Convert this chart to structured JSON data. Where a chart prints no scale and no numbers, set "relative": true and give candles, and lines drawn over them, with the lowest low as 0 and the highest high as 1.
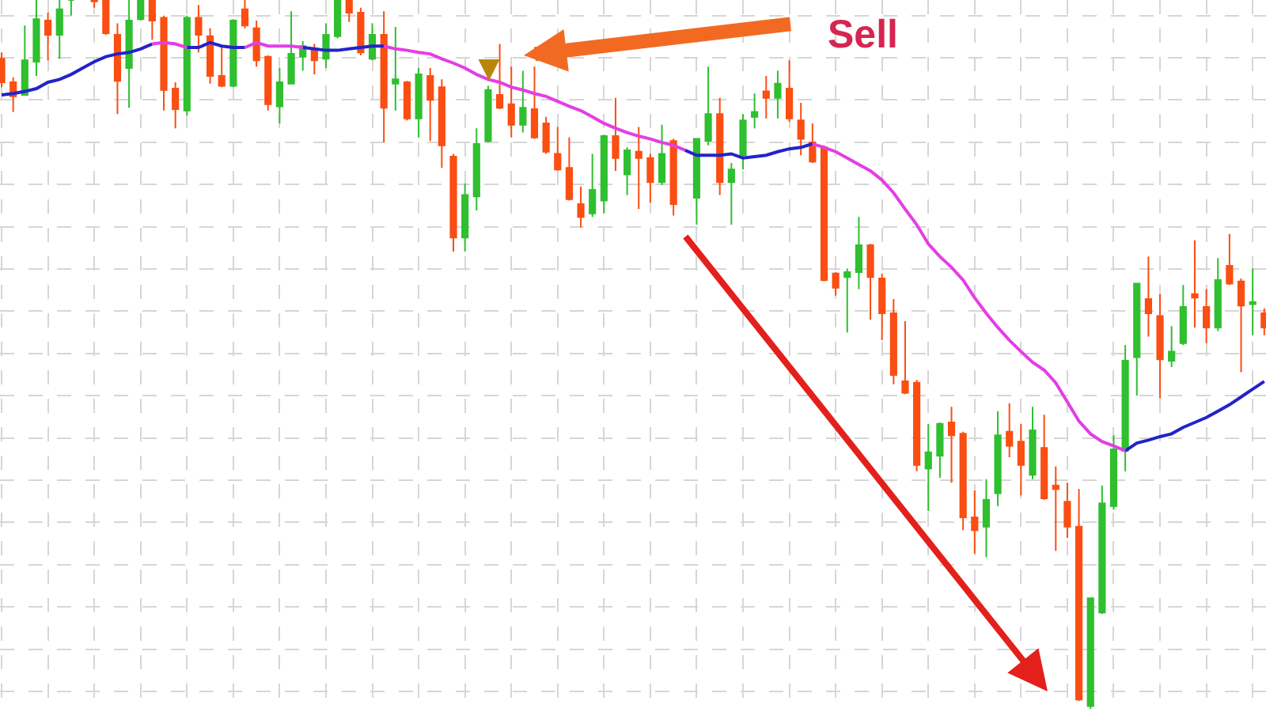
{
  "chart_data": {
    "type": "candlestick",
    "relative": true,
    "grid": true,
    "categories": [
      null,
      null,
      null,
      null,
      null,
      null,
      null,
      null,
      null,
      null,
      null,
      null,
      null,
      null,
      null,
      null,
      null,
      null,
      null,
      null,
      null,
      null,
      null,
      null,
      null,
      null,
      null,
      null,
      null,
      null,
      null,
      null,
      null,
      null,
      null,
      null,
      null,
      null,
      null,
      null,
      null,
      null,
      null,
      null,
      null,
      null,
      null,
      null,
      null,
      null,
      null,
      null,
      null,
      null,
      null,
      null,
      null,
      null,
      null,
      null,
      null,
      null,
      null,
      null,
      null,
      null,
      null,
      null,
      null,
      null,
      null,
      null,
      null,
      null,
      null,
      null,
      null,
      null,
      null,
      null,
      null,
      null,
      null,
      null,
      null,
      null,
      null,
      null,
      null,
      null,
      null,
      null,
      null,
      null,
      null,
      null,
      null,
      null,
      null,
      null,
      null,
      null,
      null,
      null,
      null,
      null,
      null,
      null,
      null,
      null
    ],
    "ohlc": [
      [
        0.917,
        0.926,
        0.877,
        0.884
      ],
      [
        0.884,
        0.891,
        0.842,
        0.864
      ],
      [
        0.866,
        0.964,
        0.866,
        0.915
      ],
      [
        0.913,
        1.0,
        0.893,
        0.973
      ],
      [
        0.971,
        0.982,
        0.915,
        0.951
      ],
      [
        0.951,
        1.0,
        0.917,
        0.987
      ],
      [
        1.0,
        1.0,
        0.978,
        1.0
      ],
      null,
      [
        1.0,
        1.0,
        0.989,
        0.998
      ],
      [
        1.0,
        1.0,
        0.951,
        0.953
      ],
      [
        0.951,
        0.967,
        0.839,
        0.886
      ],
      [
        0.904,
        1.0,
        0.848,
        0.971
      ],
      [
        0.973,
        1.0,
        0.971,
        1.0
      ],
      [
        1.0,
        1.0,
        0.944,
        0.971
      ],
      [
        0.975,
        0.978,
        0.844,
        0.873
      ],
      [
        0.875,
        0.884,
        0.819,
        0.846
      ],
      [
        0.844,
        0.978,
        0.837,
        0.975
      ],
      [
        0.975,
        0.993,
        0.926,
        0.951
      ],
      [
        0.949,
        0.96,
        0.882,
        0.893
      ],
      [
        0.893,
        0.933,
        0.877,
        0.879
      ],
      [
        0.879,
        0.973,
        0.877,
        0.971
      ],
      [
        0.987,
        1.0,
        0.96,
        0.964
      ],
      [
        0.96,
        0.971,
        0.906,
        0.915
      ],
      [
        0.92,
        0.922,
        0.844,
        0.853
      ],
      [
        0.85,
        0.904,
        0.826,
        0.884
      ],
      [
        0.882,
        0.984,
        0.882,
        0.924
      ],
      [
        0.92,
        0.942,
        0.9,
        0.935
      ],
      [
        0.931,
        0.938,
        0.895,
        0.915
      ],
      [
        0.917,
        0.967,
        0.904,
        0.951
      ],
      [
        0.949,
        1.0,
        0.946,
        1.0
      ],
      [
        1.0,
        1.0,
        0.969,
        0.982
      ],
      [
        0.982,
        0.989,
        0.922,
        0.926
      ],
      [
        0.917,
        0.967,
        0.915,
        0.951
      ],
      [
        0.951,
        0.984,
        0.799,
        0.848
      ],
      [
        0.882,
        0.962,
        0.844,
        0.888
      ],
      [
        0.884,
        0.886,
        0.83,
        0.833
      ],
      [
        0.833,
        0.904,
        0.806,
        0.895
      ],
      [
        0.893,
        0.904,
        0.801,
        0.859
      ],
      [
        0.877,
        0.888,
        0.763,
        0.795
      ],
      [
        0.779,
        0.783,
        0.645,
        0.665
      ],
      [
        0.665,
        0.741,
        0.645,
        0.725
      ],
      [
        0.723,
        0.819,
        0.703,
        0.797
      ],
      [
        0.801,
        0.879,
        0.799,
        0.873
      ],
      [
        0.866,
        0.938,
        0.846,
        0.848
      ],
      [
        0.853,
        0.906,
        0.806,
        0.824
      ],
      [
        0.824,
        0.9,
        0.813,
        0.848
      ],
      [
        0.846,
        0.906,
        0.804,
        0.806
      ],
      [
        0.826,
        0.835,
        0.783,
        0.786
      ],
      [
        0.783,
        0.821,
        0.759,
        0.761
      ],
      [
        0.763,
        0.806,
        0.717,
        0.719
      ],
      [
        0.712,
        0.737,
        0.679,
        0.694
      ],
      [
        0.699,
        0.783,
        0.694,
        0.732
      ],
      [
        0.717,
        0.81,
        0.699,
        0.808
      ],
      [
        0.808,
        0.862,
        0.759,
        0.777
      ],
      [
        0.754,
        0.792,
        0.725,
        0.788
      ],
      [
        0.786,
        0.821,
        0.705,
        0.777
      ],
      [
        0.777,
        0.783,
        0.714,
        0.743
      ],
      [
        0.743,
        0.824,
        0.739,
        0.783
      ],
      [
        0.801,
        0.804,
        0.696,
        0.712
      ],
      null,
      [
        0.721,
        0.804,
        0.683,
        0.804
      ],
      [
        0.801,
        0.906,
        0.795,
        0.839
      ],
      [
        0.839,
        0.862,
        0.725,
        0.743
      ],
      [
        0.743,
        0.77,
        0.683,
        0.761
      ],
      [
        0.781,
        0.839,
        0.761,
        0.83
      ],
      [
        0.835,
        0.868,
        0.819,
        0.842
      ],
      [
        0.871,
        0.893,
        0.833,
        0.862
      ],
      [
        0.862,
        0.9,
        0.833,
        0.882
      ],
      [
        0.875,
        0.915,
        0.828,
        0.833
      ],
      [
        0.83,
        0.855,
        0.781,
        0.804
      ],
      [
        0.799,
        0.826,
        0.77,
        0.772
      ],
      [
        0.792,
        0.795,
        0.603,
        0.605
      ],
      [
        0.614,
        0.616,
        0.583,
        0.594
      ],
      [
        0.609,
        0.621,
        0.531,
        0.616
      ],
      [
        0.616,
        0.694,
        0.592,
        0.654
      ],
      [
        0.654,
        0.656,
        0.549,
        0.609
      ],
      [
        0.607,
        0.614,
        0.52,
        0.558
      ],
      [
        0.558,
        0.578,
        0.458,
        0.471
      ],
      [
        0.462,
        0.547,
        0.444,
        0.446
      ],
      [
        0.46,
        0.464,
        0.335,
        0.344
      ],
      [
        0.339,
        0.402,
        0.279,
        0.362
      ],
      [
        0.357,
        0.404,
        0.326,
        0.402
      ],
      [
        0.404,
        0.426,
        0.319,
        0.386
      ],
      [
        0.388,
        0.391,
        0.252,
        0.27
      ],
      [
        0.27,
        0.308,
        0.219,
        0.252
      ],
      [
        0.257,
        0.324,
        0.214,
        0.295
      ],
      [
        0.304,
        0.42,
        0.286,
        0.386
      ],
      [
        0.391,
        0.431,
        0.355,
        0.371
      ],
      [
        0.377,
        0.402,
        0.301,
        0.344
      ],
      [
        0.33,
        0.426,
        0.324,
        0.393
      ],
      [
        0.368,
        0.415,
        0.295,
        0.297
      ],
      [
        0.315,
        0.342,
        0.223,
        0.31
      ],
      [
        0.292,
        0.319,
        0.241,
        0.257
      ],
      [
        0.257,
        0.31,
        0.011,
        0.013
      ],
      [
        0.004,
        0.156,
        0.0,
        0.156
      ],
      [
        0.136,
        0.315,
        0.134,
        0.29
      ],
      [
        0.286,
        0.386,
        0.281,
        0.366
      ],
      [
        0.364,
        0.513,
        0.335,
        0.491
      ],
      [
        0.496,
        0.6,
        0.442,
        0.6
      ],
      [
        0.578,
        0.638,
        0.525,
        0.558
      ],
      [
        0.554,
        0.585,
        0.438,
        0.493
      ],
      [
        0.491,
        0.54,
        0.482,
        0.504
      ],
      [
        0.516,
        0.598,
        0.513,
        0.567
      ],
      [
        0.585,
        0.661,
        0.538,
        0.58
      ],
      [
        0.567,
        0.592,
        0.516,
        0.538
      ],
      [
        0.538,
        0.636,
        0.533,
        0.605
      ],
      [
        0.625,
        0.67,
        0.598,
        0.6
      ],
      [
        0.603,
        0.607,
        0.475,
        0.569
      ],
      [
        0.571,
        0.621,
        0.527,
        0.574
      ],
      [
        0.558,
        0.565,
        0.527,
        0.538
      ]
    ],
    "colors": [
      "#fb4e12",
      "#fb4e12",
      "#2fbf2f",
      "#2fbf2f",
      "#fb4e12",
      "#2fbf2f",
      "#2fbf2f",
      null,
      "#fb4e12",
      "#fb4e12",
      "#fb4e12",
      "#2fbf2f",
      "#2fbf2f",
      "#fb4e12",
      "#fb4e12",
      "#fb4e12",
      "#2fbf2f",
      "#fb4e12",
      "#fb4e12",
      "#fb4e12",
      "#2fbf2f",
      "#fb4e12",
      "#fb4e12",
      "#fb4e12",
      "#2fbf2f",
      "#2fbf2f",
      "#2fbf2f",
      "#fb4e12",
      "#2fbf2f",
      "#2fbf2f",
      "#fb4e12",
      "#fb4e12",
      "#2fbf2f",
      "#fb4e12",
      "#2fbf2f",
      "#fb4e12",
      "#2fbf2f",
      "#fb4e12",
      "#fb4e12",
      "#fb4e12",
      "#2fbf2f",
      "#2fbf2f",
      "#2fbf2f",
      "#fb4e12",
      "#fb4e12",
      "#2fbf2f",
      "#fb4e12",
      "#fb4e12",
      "#fb4e12",
      "#fb4e12",
      "#fb4e12",
      "#2fbf2f",
      "#2fbf2f",
      "#fb4e12",
      "#2fbf2f",
      "#fb4e12",
      "#fb4e12",
      "#2fbf2f",
      "#fb4e12",
      null,
      "#2fbf2f",
      "#2fbf2f",
      "#fb4e12",
      "#2fbf2f",
      "#2fbf2f",
      "#2fbf2f",
      "#fb4e12",
      "#2fbf2f",
      "#fb4e12",
      "#fb4e12",
      "#fb4e12",
      "#fb4e12",
      "#fb4e12",
      "#2fbf2f",
      "#2fbf2f",
      "#fb4e12",
      "#fb4e12",
      "#fb4e12",
      "#fb4e12",
      "#fb4e12",
      "#2fbf2f",
      "#2fbf2f",
      "#fb4e12",
      "#fb4e12",
      "#fb4e12",
      "#2fbf2f",
      "#2fbf2f",
      "#fb4e12",
      "#fb4e12",
      "#2fbf2f",
      "#fb4e12",
      "#fb4e12",
      "#fb4e12",
      "#fb4e12",
      "#2fbf2f",
      "#2fbf2f",
      "#2fbf2f",
      "#2fbf2f",
      "#2fbf2f",
      "#fb4e12",
      "#fb4e12",
      "#2fbf2f",
      "#2fbf2f",
      "#fb4e12",
      "#fb4e12",
      "#2fbf2f",
      "#fb4e12",
      "#fb4e12",
      "#2fbf2f",
      "#fb4e12"
    ],
    "series": [
      {
        "type": "line",
        "color": "#2323c8",
        "values": [
          0.866,
          0.868,
          0.871,
          0.875,
          0.884,
          0.888,
          0.895,
          0.904,
          0.913,
          0.92,
          0.924,
          0.926,
          0.931,
          0.938,
          null,
          null,
          0.933,
          0.933,
          0.94,
          0.935,
          0.933,
          0.933,
          null,
          null,
          null,
          null,
          0.933,
          0.931,
          0.929,
          0.929,
          0.931,
          0.933,
          0.935,
          0.935,
          null,
          null,
          null,
          null,
          null,
          null,
          null,
          null,
          null,
          null,
          null,
          null,
          null,
          null,
          null,
          null,
          null,
          null,
          null,
          null,
          null,
          null,
          null,
          null,
          null,
          0.788,
          0.781,
          0.781,
          0.781,
          0.783,
          0.777,
          0.779,
          0.781,
          0.786,
          0.79,
          0.792,
          0.797,
          null,
          null,
          null,
          null,
          null,
          null,
          null,
          null,
          null,
          null,
          null,
          null,
          null,
          null,
          null,
          null,
          null,
          null,
          null,
          null,
          null,
          null,
          null,
          null,
          null,
          null,
          0.364,
          0.375,
          0.379,
          0.384,
          0.388,
          0.397,
          0.404,
          0.411,
          0.42,
          0.429,
          0.44,
          0.451,
          0.462
        ]
      },
      {
        "type": "line",
        "color": "#e43ee4",
        "values": [
          null,
          null,
          null,
          null,
          null,
          null,
          null,
          null,
          null,
          null,
          null,
          null,
          null,
          0.938,
          0.94,
          0.938,
          0.933,
          null,
          null,
          null,
          null,
          0.933,
          0.94,
          0.935,
          0.935,
          0.935,
          0.933,
          null,
          null,
          null,
          null,
          null,
          null,
          0.935,
          0.931,
          0.929,
          0.926,
          0.924,
          0.917,
          0.911,
          0.904,
          0.895,
          0.888,
          0.884,
          0.877,
          0.873,
          0.868,
          0.864,
          0.857,
          0.85,
          0.844,
          0.835,
          0.826,
          0.819,
          0.813,
          0.808,
          0.804,
          0.799,
          0.795,
          0.788,
          null,
          null,
          null,
          null,
          null,
          null,
          null,
          null,
          null,
          null,
          0.797,
          0.792,
          0.786,
          0.777,
          0.768,
          0.759,
          0.746,
          0.728,
          0.705,
          0.683,
          0.656,
          0.638,
          0.623,
          0.605,
          0.58,
          0.558,
          0.538,
          0.52,
          0.504,
          0.489,
          0.478,
          0.46,
          0.433,
          0.406,
          0.388,
          0.377,
          0.371,
          0.364,
          null,
          null,
          null,
          null,
          null,
          null,
          null,
          null,
          null,
          null,
          null,
          null
        ]
      }
    ],
    "annotations": [
      "Sell"
    ]
  }
}
